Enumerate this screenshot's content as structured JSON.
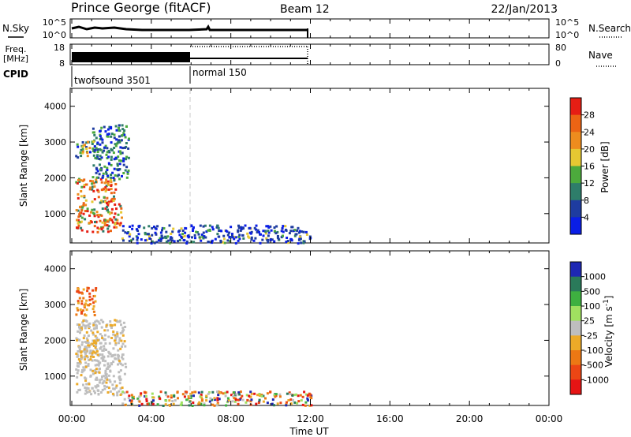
{
  "header": {
    "station": "Prince George (fitACF)",
    "beam": "Beam 12",
    "date": "22/Jan/2013"
  },
  "panels": {
    "nsky": {
      "left_label": "N.Sky",
      "left_ticks": [
        "10^5",
        "10^0"
      ],
      "right_ticks": [
        "10^5",
        "10^0"
      ],
      "right_label": "N.Search"
    },
    "freq": {
      "left_label_1": "Freq.",
      "left_label_2": "[MHz]",
      "left_ticks": [
        "18",
        "8"
      ],
      "right_ticks": [
        "80",
        "0"
      ],
      "right_label": "Nave"
    },
    "cpid": {
      "label": "CPID",
      "segments": [
        "twofsound 3501",
        "normal 150"
      ]
    }
  },
  "colors": {
    "power": [
      "#0a1ee6",
      "#1e3ca0",
      "#2e7d6a",
      "#4caa3c",
      "#e6c832",
      "#ee8c1e",
      "#ec6414",
      "#e61e14"
    ],
    "velocity": [
      "#1e28b4",
      "#2a7a5a",
      "#3eb040",
      "#a0e060",
      "#bebebe",
      "#ecaa28",
      "#ec7814",
      "#ec4614",
      "#e61414"
    ]
  },
  "chart_data": [
    {
      "type": "heatmap",
      "title": "Power",
      "xlabel": "Time UT",
      "ylabel": "Slant Range [km]",
      "xlim": [
        "00:00",
        "00:00"
      ],
      "x_ticks": [
        "00:00",
        "04:00",
        "08:00",
        "12:00",
        "16:00",
        "20:00",
        "00:00"
      ],
      "ylim": [
        180,
        4500
      ],
      "y_ticks": [
        1000,
        2000,
        3000,
        4000
      ],
      "colorbar": {
        "label": "Power [dB]",
        "ticks": [
          "28",
          "24",
          "20",
          "16",
          "12",
          "8",
          "4"
        ],
        "range": [
          0,
          30
        ]
      },
      "data_extent": [
        "00:00",
        "12:00"
      ],
      "regions": [
        {
          "t_start": "00:10",
          "t_end": "01:10",
          "r_min": 2600,
          "r_max": 3100,
          "level": "mixed"
        },
        {
          "t_start": "00:10",
          "t_end": "02:10",
          "r_min": 1300,
          "r_max": 2000,
          "level": "high"
        },
        {
          "t_start": "00:10",
          "t_end": "02:30",
          "r_min": 500,
          "r_max": 1300,
          "level": "high"
        },
        {
          "t_start": "01:00",
          "t_end": "02:50",
          "r_min": 2000,
          "r_max": 3500,
          "level": "low-mid"
        },
        {
          "t_start": "02:30",
          "t_end": "12:00",
          "r_min": 200,
          "r_max": 700,
          "level": "low"
        }
      ]
    },
    {
      "type": "heatmap",
      "title": "Velocity",
      "xlabel": "Time UT",
      "ylabel": "Slant Range [km]",
      "xlim": [
        "00:00",
        "00:00"
      ],
      "x_ticks": [
        "00:00",
        "04:00",
        "08:00",
        "12:00",
        "16:00",
        "20:00",
        "00:00"
      ],
      "ylim": [
        180,
        4500
      ],
      "y_ticks": [
        1000,
        2000,
        3000,
        4000
      ],
      "colorbar": {
        "label": "Velocity [m s^-1]",
        "ticks": [
          "1000",
          "500",
          "100",
          "25",
          "-25",
          "-100",
          "-500",
          "-1000"
        ]
      },
      "data_extent": [
        "00:00",
        "12:00"
      ],
      "regions": [
        {
          "t_start": "00:10",
          "t_end": "01:10",
          "r_min": 2700,
          "r_max": 3500,
          "level": "-100 to -500"
        },
        {
          "t_start": "00:10",
          "t_end": "02:40",
          "r_min": 500,
          "r_max": 2600,
          "level": "-25 to 25"
        },
        {
          "t_start": "00:10",
          "t_end": "01:30",
          "r_min": 1500,
          "r_max": 2100,
          "level": "-25 to -100"
        },
        {
          "t_start": "02:30",
          "t_end": "12:00",
          "r_min": 200,
          "r_max": 600,
          "level": "mixed"
        }
      ]
    }
  ]
}
